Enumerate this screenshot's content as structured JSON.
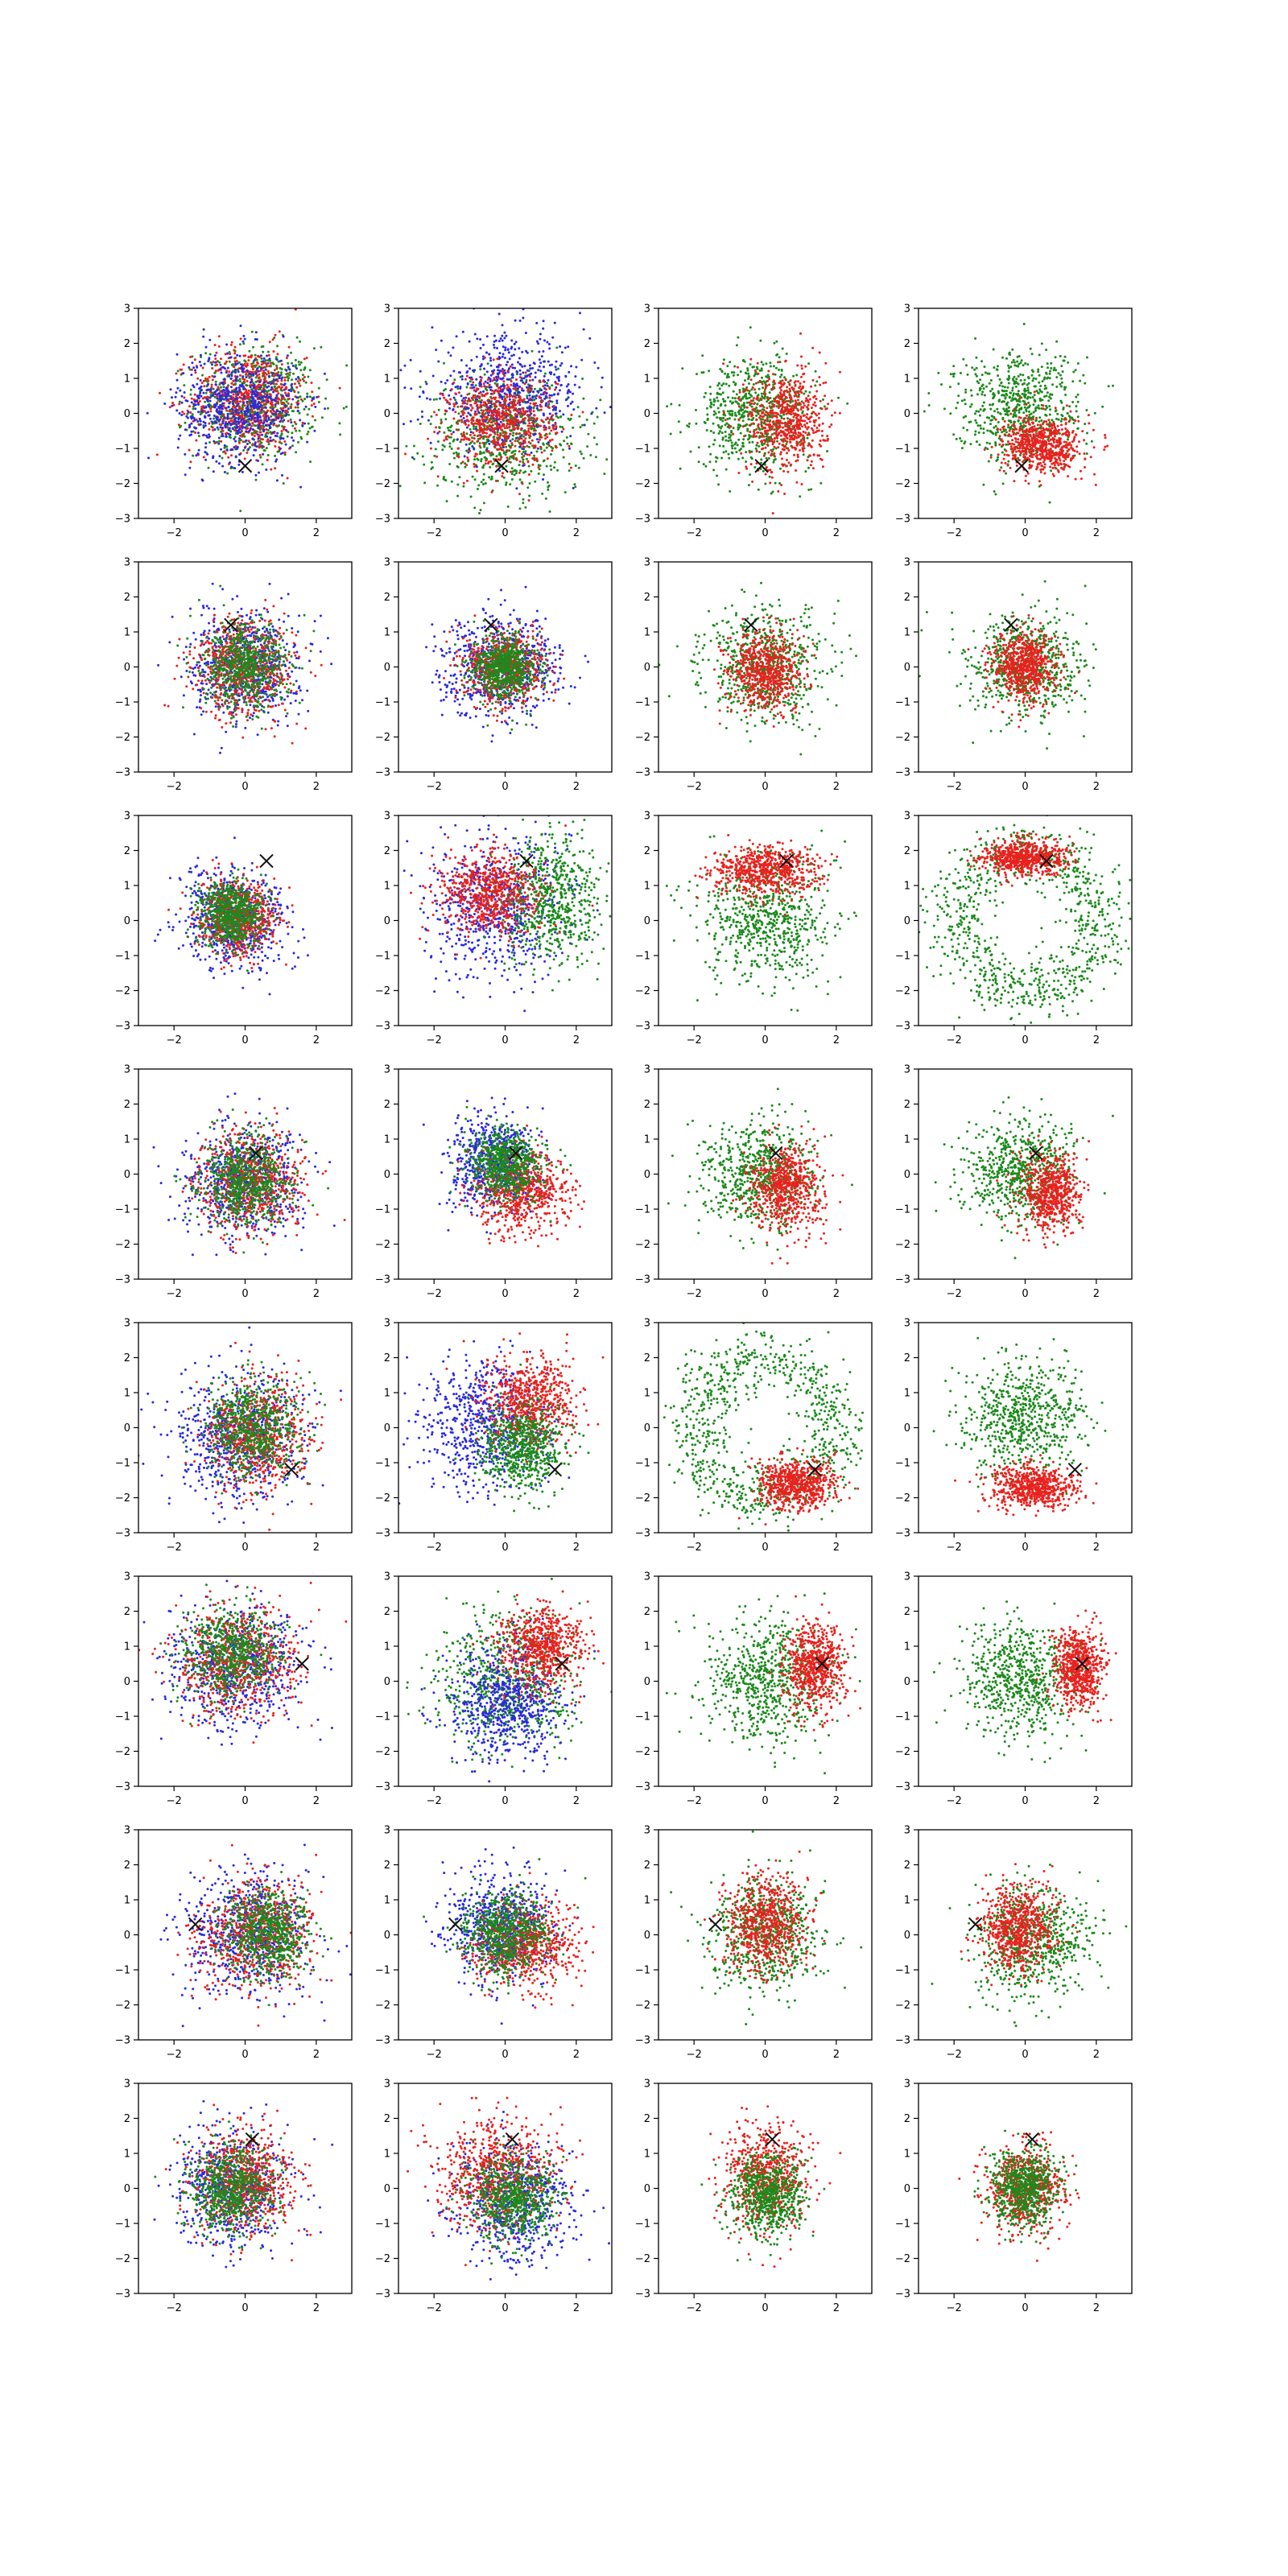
{
  "figure": {
    "rows": 8,
    "cols": 4,
    "colors": {
      "red": "#e8221e",
      "green": "#1c8a1c",
      "blue": "#2a2ae0",
      "marker": "#111111",
      "axes": "#000000",
      "background": "#ffffff"
    }
  },
  "chart_data": {
    "type": "scatter",
    "xlim": [
      -3,
      3
    ],
    "ylim": [
      -3,
      3
    ],
    "xticks": [
      -2,
      0,
      2
    ],
    "yticks": [
      -3,
      -2,
      -1,
      0,
      1,
      2,
      3
    ],
    "x_tick_labels": [
      "−2",
      "0",
      "2"
    ],
    "y_tick_labels": [
      "−3",
      "−2",
      "−1",
      "0",
      "1",
      "2",
      "3"
    ],
    "title": "",
    "xlabel": "",
    "ylabel": "",
    "legend": "none",
    "grid": false,
    "marker_symbol": "×",
    "panels": [
      {
        "row": 0,
        "col": 0,
        "marker": [
          0.0,
          -1.5
        ],
        "points": [
          {
            "color": "green",
            "cx": 0.3,
            "cy": 0.3,
            "sx": 0.85,
            "sy": 0.8
          },
          {
            "color": "red",
            "cx": 0.1,
            "cy": 0.4,
            "sx": 0.8,
            "sy": 0.75
          },
          {
            "color": "blue",
            "cx": -0.2,
            "cy": 0.2,
            "sx": 0.85,
            "sy": 0.8
          }
        ]
      },
      {
        "row": 0,
        "col": 1,
        "marker": [
          -0.1,
          -1.5
        ],
        "points": [
          {
            "color": "green",
            "cx": 0.0,
            "cy": -0.6,
            "sx": 1.1,
            "sy": 0.85
          },
          {
            "color": "blue",
            "cx": 0.1,
            "cy": 0.6,
            "sx": 1.1,
            "sy": 0.8
          },
          {
            "color": "red",
            "cx": -0.1,
            "cy": -0.2,
            "sx": 0.75,
            "sy": 0.65
          }
        ]
      },
      {
        "row": 0,
        "col": 2,
        "marker": [
          -0.1,
          -1.5
        ],
        "points": [
          {
            "color": "green",
            "cx": -0.3,
            "cy": 0.0,
            "sx": 0.8,
            "sy": 0.8
          },
          {
            "color": "red",
            "cx": 0.6,
            "cy": -0.2,
            "sx": 0.55,
            "sy": 0.75
          }
        ]
      },
      {
        "row": 0,
        "col": 3,
        "marker": [
          -0.1,
          -1.5
        ],
        "points": [
          {
            "color": "green",
            "cx": -0.2,
            "cy": 0.2,
            "sx": 0.9,
            "sy": 0.8
          },
          {
            "color": "red",
            "cx": 0.5,
            "cy": -0.9,
            "sx": 0.55,
            "sy": 0.4
          }
        ]
      },
      {
        "row": 1,
        "col": 0,
        "marker": [
          -0.4,
          1.2
        ],
        "points": [
          {
            "color": "blue",
            "cx": 0.0,
            "cy": 0.0,
            "sx": 0.75,
            "sy": 0.75
          },
          {
            "color": "red",
            "cx": 0.0,
            "cy": 0.0,
            "sx": 0.7,
            "sy": 0.7
          },
          {
            "color": "green",
            "cx": 0.0,
            "cy": 0.0,
            "sx": 0.6,
            "sy": 0.6
          }
        ]
      },
      {
        "row": 1,
        "col": 1,
        "marker": [
          -0.4,
          1.2
        ],
        "points": [
          {
            "color": "blue",
            "cx": -0.1,
            "cy": 0.0,
            "sx": 0.85,
            "sy": 0.7
          },
          {
            "color": "red",
            "cx": 0.0,
            "cy": 0.0,
            "sx": 0.55,
            "sy": 0.5
          },
          {
            "color": "green",
            "cx": 0.0,
            "cy": 0.0,
            "sx": 0.45,
            "sy": 0.45
          }
        ]
      },
      {
        "row": 1,
        "col": 2,
        "marker": [
          -0.4,
          1.2
        ],
        "points": [
          {
            "color": "green",
            "cx": 0.0,
            "cy": 0.0,
            "sx": 0.85,
            "sy": 0.8
          },
          {
            "color": "red",
            "cx": 0.0,
            "cy": -0.1,
            "sx": 0.5,
            "sy": 0.55
          }
        ]
      },
      {
        "row": 1,
        "col": 3,
        "marker": [
          -0.4,
          1.2
        ],
        "points": [
          {
            "color": "green",
            "cx": 0.0,
            "cy": 0.0,
            "sx": 0.8,
            "sy": 0.75
          },
          {
            "color": "red",
            "cx": 0.0,
            "cy": 0.0,
            "sx": 0.45,
            "sy": 0.5
          }
        ]
      },
      {
        "row": 2,
        "col": 0,
        "marker": [
          0.6,
          1.7
        ],
        "points": [
          {
            "color": "blue",
            "cx": -0.3,
            "cy": 0.0,
            "sx": 0.75,
            "sy": 0.7
          },
          {
            "color": "red",
            "cx": -0.2,
            "cy": 0.1,
            "sx": 0.55,
            "sy": 0.5
          },
          {
            "color": "green",
            "cx": -0.4,
            "cy": 0.2,
            "sx": 0.45,
            "sy": 0.45
          }
        ]
      },
      {
        "row": 2,
        "col": 1,
        "marker": [
          0.6,
          1.7
        ],
        "points": [
          {
            "color": "blue",
            "cx": -0.2,
            "cy": 0.4,
            "sx": 1.0,
            "sy": 1.0
          },
          {
            "color": "green",
            "cx": 1.3,
            "cy": 0.6,
            "sx": 0.7,
            "sy": 0.9
          },
          {
            "color": "red",
            "cx": -0.5,
            "cy": 0.8,
            "sx": 0.7,
            "sy": 0.6
          }
        ]
      },
      {
        "row": 2,
        "col": 2,
        "marker": [
          0.6,
          1.7
        ],
        "points": [
          {
            "color": "green",
            "cx": 0.0,
            "cy": 0.0,
            "sx": 0.9,
            "sy": 0.9
          },
          {
            "color": "red",
            "cx": 0.0,
            "cy": 1.4,
            "sx": 0.75,
            "sy": 0.35
          }
        ]
      },
      {
        "row": 2,
        "col": 3,
        "ring": {
          "color": "green",
          "r": 2.0,
          "w": 0.45
        },
        "marker": [
          0.6,
          1.7
        ],
        "points": [
          {
            "color": "red",
            "cx": 0.0,
            "cy": 1.8,
            "sx": 0.6,
            "sy": 0.25
          }
        ]
      },
      {
        "row": 3,
        "col": 0,
        "marker": [
          0.3,
          0.6
        ],
        "points": [
          {
            "color": "blue",
            "cx": 0.0,
            "cy": -0.2,
            "sx": 0.8,
            "sy": 0.8
          },
          {
            "color": "red",
            "cx": 0.1,
            "cy": -0.2,
            "sx": 0.75,
            "sy": 0.75
          },
          {
            "color": "green",
            "cx": 0.0,
            "cy": -0.2,
            "sx": 0.6,
            "sy": 0.6
          }
        ]
      },
      {
        "row": 3,
        "col": 1,
        "marker": [
          0.3,
          0.6
        ],
        "points": [
          {
            "color": "blue",
            "cx": -0.3,
            "cy": 0.3,
            "sx": 0.6,
            "sy": 0.65
          },
          {
            "color": "red",
            "cx": 0.5,
            "cy": -0.5,
            "sx": 0.65,
            "sy": 0.6
          },
          {
            "color": "green",
            "cx": 0.0,
            "cy": 0.3,
            "sx": 0.5,
            "sy": 0.5
          }
        ]
      },
      {
        "row": 3,
        "col": 2,
        "marker": [
          0.3,
          0.6
        ],
        "points": [
          {
            "color": "green",
            "cx": -0.2,
            "cy": 0.0,
            "sx": 0.8,
            "sy": 0.8
          },
          {
            "color": "red",
            "cx": 0.6,
            "cy": -0.4,
            "sx": 0.5,
            "sy": 0.6
          }
        ]
      },
      {
        "row": 3,
        "col": 3,
        "marker": [
          0.3,
          0.6
        ],
        "points": [
          {
            "color": "green",
            "cx": -0.2,
            "cy": 0.1,
            "sx": 0.75,
            "sy": 0.75
          },
          {
            "color": "red",
            "cx": 0.7,
            "cy": -0.5,
            "sx": 0.4,
            "sy": 0.55
          }
        ]
      },
      {
        "row": 4,
        "col": 0,
        "marker": [
          1.3,
          -1.2
        ],
        "points": [
          {
            "color": "blue",
            "cx": -0.2,
            "cy": -0.2,
            "sx": 0.9,
            "sy": 0.9
          },
          {
            "color": "red",
            "cx": 0.4,
            "cy": -0.2,
            "sx": 0.7,
            "sy": 0.8
          },
          {
            "color": "green",
            "cx": 0.2,
            "cy": 0.0,
            "sx": 0.7,
            "sy": 0.7
          }
        ]
      },
      {
        "row": 4,
        "col": 1,
        "marker": [
          1.4,
          -1.2
        ],
        "points": [
          {
            "color": "blue",
            "cx": -0.6,
            "cy": 0.0,
            "sx": 0.9,
            "sy": 0.9
          },
          {
            "color": "red",
            "cx": 0.7,
            "cy": 0.8,
            "sx": 0.65,
            "sy": 0.65
          },
          {
            "color": "green",
            "cx": 0.5,
            "cy": -0.6,
            "sx": 0.6,
            "sy": 0.6
          }
        ]
      },
      {
        "row": 4,
        "col": 2,
        "ring": {
          "color": "green",
          "r": 2.0,
          "w": 0.45
        },
        "marker": [
          1.4,
          -1.2
        ],
        "points": [
          {
            "color": "red",
            "cx": 0.9,
            "cy": -1.6,
            "sx": 0.55,
            "sy": 0.35
          }
        ]
      },
      {
        "row": 4,
        "col": 3,
        "marker": [
          1.4,
          -1.2
        ],
        "points": [
          {
            "color": "green",
            "cx": 0.0,
            "cy": 0.3,
            "sx": 0.8,
            "sy": 0.8
          },
          {
            "color": "red",
            "cx": 0.2,
            "cy": -1.7,
            "sx": 0.6,
            "sy": 0.3
          }
        ]
      },
      {
        "row": 5,
        "col": 0,
        "marker": [
          1.6,
          0.5
        ],
        "points": [
          {
            "color": "blue",
            "cx": -0.3,
            "cy": 0.4,
            "sx": 0.9,
            "sy": 0.9
          },
          {
            "color": "red",
            "cx": -0.3,
            "cy": 0.6,
            "sx": 0.8,
            "sy": 0.75
          },
          {
            "color": "green",
            "cx": -0.4,
            "cy": 0.8,
            "sx": 0.7,
            "sy": 0.6
          }
        ]
      },
      {
        "row": 5,
        "col": 1,
        "marker": [
          1.6,
          0.5
        ],
        "points": [
          {
            "color": "green",
            "cx": 0.0,
            "cy": 0.0,
            "sx": 1.0,
            "sy": 1.0
          },
          {
            "color": "blue",
            "cx": 0.0,
            "cy": -0.6,
            "sx": 0.8,
            "sy": 0.85
          },
          {
            "color": "red",
            "cx": 1.0,
            "cy": 1.0,
            "sx": 0.6,
            "sy": 0.6
          }
        ]
      },
      {
        "row": 5,
        "col": 2,
        "marker": [
          1.6,
          0.5
        ],
        "points": [
          {
            "color": "green",
            "cx": 0.0,
            "cy": 0.0,
            "sx": 0.9,
            "sy": 0.9
          },
          {
            "color": "red",
            "cx": 1.4,
            "cy": 0.4,
            "sx": 0.4,
            "sy": 0.6
          }
        ]
      },
      {
        "row": 5,
        "col": 3,
        "marker": [
          1.6,
          0.5
        ],
        "points": [
          {
            "color": "green",
            "cx": -0.2,
            "cy": 0.0,
            "sx": 0.8,
            "sy": 0.8
          },
          {
            "color": "red",
            "cx": 1.5,
            "cy": 0.4,
            "sx": 0.35,
            "sy": 0.55
          }
        ]
      },
      {
        "row": 6,
        "col": 0,
        "marker": [
          -1.4,
          0.3
        ],
        "points": [
          {
            "color": "blue",
            "cx": 0.0,
            "cy": 0.1,
            "sx": 0.9,
            "sy": 0.85
          },
          {
            "color": "red",
            "cx": 0.3,
            "cy": 0.0,
            "sx": 0.8,
            "sy": 0.8
          },
          {
            "color": "green",
            "cx": 0.6,
            "cy": 0.0,
            "sx": 0.6,
            "sy": 0.6
          }
        ]
      },
      {
        "row": 6,
        "col": 1,
        "marker": [
          -1.4,
          0.3
        ],
        "points": [
          {
            "color": "blue",
            "cx": -0.2,
            "cy": 0.3,
            "sx": 0.7,
            "sy": 0.75
          },
          {
            "color": "red",
            "cx": 0.6,
            "cy": -0.3,
            "sx": 0.7,
            "sy": 0.6
          },
          {
            "color": "green",
            "cx": 0.0,
            "cy": 0.0,
            "sx": 0.6,
            "sy": 0.6
          }
        ]
      },
      {
        "row": 6,
        "col": 2,
        "marker": [
          -1.4,
          0.3
        ],
        "points": [
          {
            "color": "green",
            "cx": 0.0,
            "cy": 0.0,
            "sx": 0.8,
            "sy": 0.8
          },
          {
            "color": "red",
            "cx": 0.0,
            "cy": 0.3,
            "sx": 0.55,
            "sy": 0.7
          }
        ]
      },
      {
        "row": 6,
        "col": 3,
        "marker": [
          -1.4,
          0.3
        ],
        "points": [
          {
            "color": "green",
            "cx": 0.2,
            "cy": -0.2,
            "sx": 0.8,
            "sy": 0.8
          },
          {
            "color": "red",
            "cx": -0.2,
            "cy": 0.2,
            "sx": 0.5,
            "sy": 0.6
          }
        ]
      },
      {
        "row": 7,
        "col": 0,
        "marker": [
          0.2,
          1.4
        ],
        "points": [
          {
            "color": "blue",
            "cx": -0.4,
            "cy": 0.0,
            "sx": 0.8,
            "sy": 0.8
          },
          {
            "color": "red",
            "cx": 0.0,
            "cy": 0.2,
            "sx": 0.7,
            "sy": 0.75
          },
          {
            "color": "green",
            "cx": -0.4,
            "cy": 0.0,
            "sx": 0.6,
            "sy": 0.6
          }
        ]
      },
      {
        "row": 7,
        "col": 1,
        "marker": [
          0.2,
          1.4
        ],
        "points": [
          {
            "color": "blue",
            "cx": 0.2,
            "cy": -0.4,
            "sx": 0.9,
            "sy": 0.8
          },
          {
            "color": "red",
            "cx": -0.3,
            "cy": 0.4,
            "sx": 0.85,
            "sy": 0.8
          },
          {
            "color": "green",
            "cx": 0.3,
            "cy": -0.3,
            "sx": 0.6,
            "sy": 0.6
          }
        ]
      },
      {
        "row": 7,
        "col": 2,
        "marker": [
          0.2,
          1.4
        ],
        "points": [
          {
            "color": "red",
            "cx": 0.0,
            "cy": 0.3,
            "sx": 0.6,
            "sy": 0.7
          },
          {
            "color": "green",
            "cx": 0.1,
            "cy": -0.2,
            "sx": 0.55,
            "sy": 0.6
          }
        ]
      },
      {
        "row": 7,
        "col": 3,
        "marker": [
          0.2,
          1.4
        ],
        "points": [
          {
            "color": "red",
            "cx": 0.0,
            "cy": 0.0,
            "sx": 0.55,
            "sy": 0.6
          },
          {
            "color": "green",
            "cx": 0.0,
            "cy": 0.0,
            "sx": 0.5,
            "sy": 0.55
          }
        ]
      }
    ]
  }
}
